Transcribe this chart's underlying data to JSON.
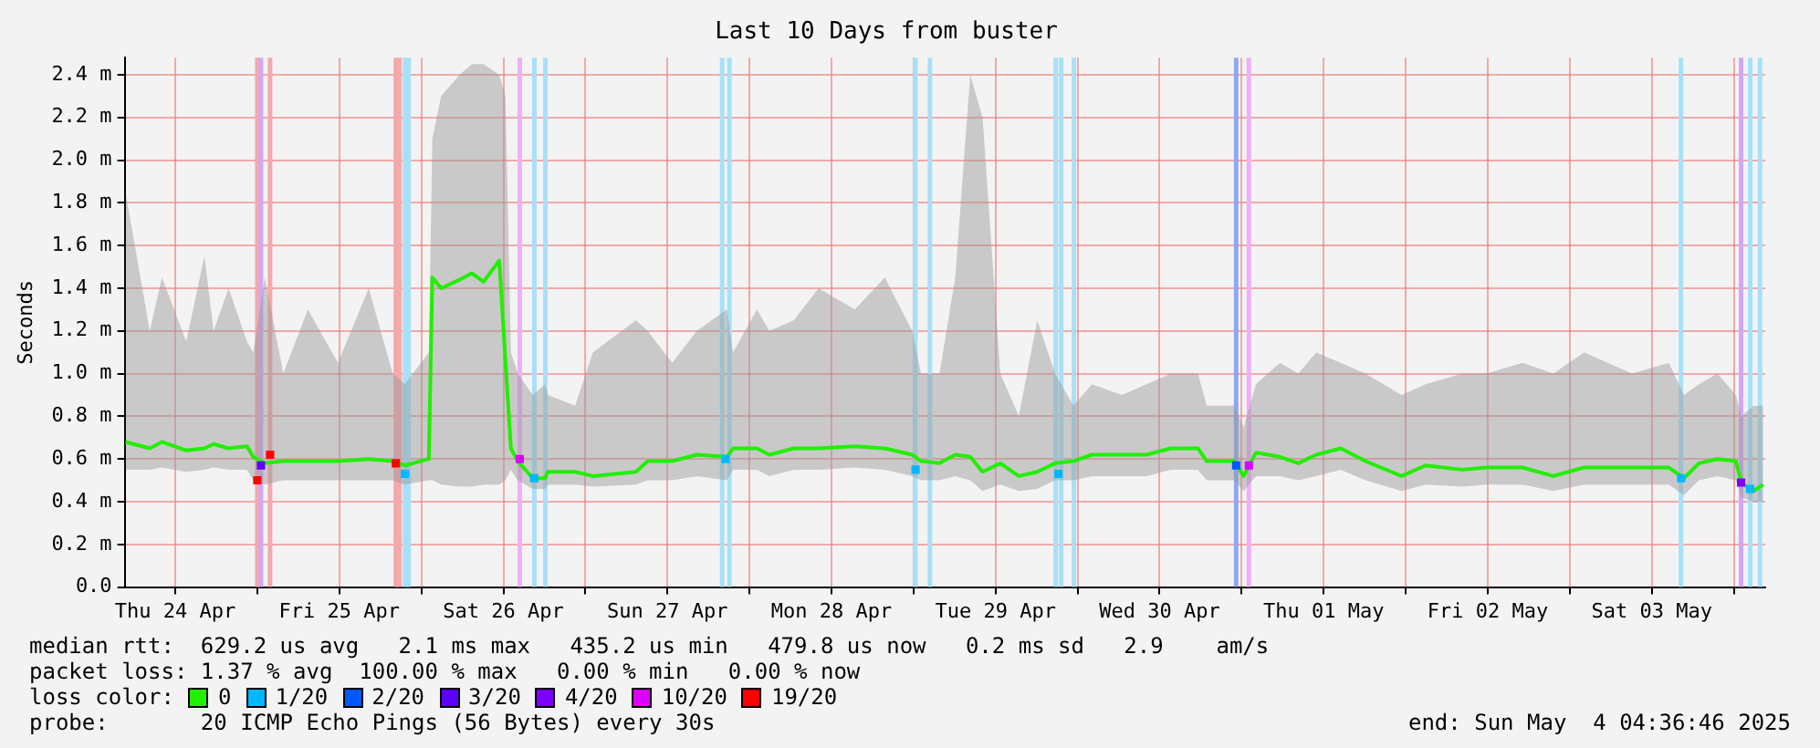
{
  "chart_data": {
    "type": "line",
    "title": "Last 10 Days from buster",
    "ylabel": "Seconds",
    "legend_title": "loss color:",
    "legend": "bottom",
    "grid": true,
    "marker": "none",
    "line_style": "solid",
    "xlim": [
      "2025-04-24T04:36",
      "2025-05-04T04:36"
    ],
    "xticks": [
      {
        "value": "2025-04-24T12:00",
        "label": "Thu 24 Apr"
      },
      {
        "value": "2025-04-25T00:00",
        "label": null
      },
      {
        "value": "2025-04-25T12:00",
        "label": "Fri 25 Apr"
      },
      {
        "value": "2025-04-26T00:00",
        "label": null
      },
      {
        "value": "2025-04-26T12:00",
        "label": "Sat 26 Apr"
      },
      {
        "value": "2025-04-27T00:00",
        "label": null
      },
      {
        "value": "2025-04-27T12:00",
        "label": "Sun 27 Apr"
      },
      {
        "value": "2025-04-28T00:00",
        "label": null
      },
      {
        "value": "2025-04-28T12:00",
        "label": "Mon 28 Apr"
      },
      {
        "value": "2025-04-29T00:00",
        "label": null
      },
      {
        "value": "2025-04-29T12:00",
        "label": "Tue 29 Apr"
      },
      {
        "value": "2025-04-30T00:00",
        "label": null
      },
      {
        "value": "2025-04-30T12:00",
        "label": "Wed 30 Apr"
      },
      {
        "value": "2025-05-01T00:00",
        "label": null
      },
      {
        "value": "2025-05-01T12:00",
        "label": "Thu 01 May"
      },
      {
        "value": "2025-05-02T00:00",
        "label": null
      },
      {
        "value": "2025-05-02T12:00",
        "label": "Fri 02 May"
      },
      {
        "value": "2025-05-03T00:00",
        "label": null
      },
      {
        "value": "2025-05-03T12:00",
        "label": "Sat 03 May"
      },
      {
        "value": "2025-05-04T00:00",
        "label": null
      }
    ],
    "ylim": [
      0,
      2.48
    ],
    "yticks": [
      {
        "value": 0,
        "label": "0.0"
      },
      {
        "value": 0.2,
        "label": "0.2 m"
      },
      {
        "value": 0.4,
        "label": "0.4 m"
      },
      {
        "value": 0.6,
        "label": "0.6 m"
      },
      {
        "value": 0.8,
        "label": "0.8 m"
      },
      {
        "value": 1.0,
        "label": "1.0 m"
      },
      {
        "value": 1.2,
        "label": "1.2 m"
      },
      {
        "value": 1.4,
        "label": "1.4 m"
      },
      {
        "value": 1.6,
        "label": "1.6 m"
      },
      {
        "value": 1.8,
        "label": "1.8 m"
      },
      {
        "value": 2.0,
        "label": "2.0 m"
      },
      {
        "value": 2.2,
        "label": "2.2 m"
      },
      {
        "value": 2.4,
        "label": "2.4 m"
      }
    ],
    "series": [
      {
        "name": "0",
        "color": "#22ee00",
        "x": [
          "2025-04-24T04:43",
          "2025-04-24T08:16",
          "2025-04-24T10:03",
          "2025-04-24T13:36",
          "2025-04-24T16:16",
          "2025-04-24T17:36",
          "2025-04-24T19:48",
          "2025-04-24T22:30",
          "2025-04-24T23:24",
          "2025-04-25T01:06",
          "2025-04-25T03:48",
          "2025-04-25T07:24",
          "2025-04-25T11:48",
          "2025-04-25T16:18",
          "2025-04-25T19:48",
          "2025-04-25T21:36",
          "2025-04-26T01:06",
          "2025-04-26T01:36",
          "2025-04-26T02:54",
          "2025-04-26T05:36",
          "2025-04-26T07:24",
          "2025-04-26T09:06",
          "2025-04-26T11:24",
          "2025-04-26T12:18",
          "2025-04-26T13:06",
          "2025-04-26T14:06",
          "2025-04-26T16:18",
          "2025-04-26T18:06",
          "2025-04-26T18:30",
          "2025-04-26T22:30",
          "2025-04-27T01:06",
          "2025-04-27T07:24",
          "2025-04-27T09:06",
          "2025-04-27T12:42",
          "2025-04-27T16:18",
          "2025-04-27T20:42",
          "2025-04-27T21:36",
          "2025-04-28T01:06",
          "2025-04-28T02:54",
          "2025-04-28T06:30",
          "2025-04-28T10:06",
          "2025-04-28T15:24",
          "2025-04-28T19:48",
          "2025-04-28T23:48",
          "2025-04-29T01:06",
          "2025-04-29T03:48",
          "2025-04-29T06:06",
          "2025-04-29T08:18",
          "2025-04-29T10:06",
          "2025-04-29T12:42",
          "2025-04-29T15:24",
          "2025-04-29T18:06",
          "2025-04-29T20:42",
          "2025-04-29T23:24",
          "2025-04-30T02:06",
          "2025-04-30T06:30",
          "2025-04-30T10:06",
          "2025-04-30T13:36",
          "2025-04-30T17:36",
          "2025-04-30T18:54",
          "2025-04-30T22:54",
          "2025-05-01T00:18",
          "2025-05-01T02:06",
          "2025-05-01T05:36",
          "2025-05-01T08:18",
          "2025-05-01T10:54",
          "2025-05-01T14:30",
          "2025-05-01T18:06",
          "2025-05-01T23:24",
          "2025-05-02T02:54",
          "2025-05-02T08:18",
          "2025-05-02T11:48",
          "2025-05-02T17:06",
          "2025-05-02T21:36",
          "2025-05-03T02:06",
          "2025-05-03T09:06",
          "2025-05-03T14:30",
          "2025-05-03T16:42",
          "2025-05-03T18:54",
          "2025-05-03T21:36",
          "2025-05-04T00:18",
          "2025-05-04T01:06",
          "2025-05-04T02:54",
          "2025-05-04T04:18"
        ],
        "values": [
          0.68,
          0.65,
          0.68,
          0.64,
          0.65,
          0.67,
          0.65,
          0.66,
          0.61,
          0.58,
          0.59,
          0.59,
          0.59,
          0.6,
          0.59,
          0.57,
          0.6,
          1.45,
          1.4,
          1.44,
          1.47,
          1.43,
          1.53,
          1.06,
          0.65,
          0.59,
          0.51,
          0.51,
          0.54,
          0.54,
          0.52,
          0.54,
          0.59,
          0.59,
          0.62,
          0.61,
          0.65,
          0.65,
          0.62,
          0.65,
          0.65,
          0.66,
          0.65,
          0.62,
          0.59,
          0.58,
          0.62,
          0.61,
          0.54,
          0.58,
          0.52,
          0.54,
          0.58,
          0.59,
          0.62,
          0.62,
          0.62,
          0.65,
          0.65,
          0.59,
          0.59,
          0.52,
          0.63,
          0.61,
          0.58,
          0.62,
          0.65,
          0.59,
          0.52,
          0.57,
          0.55,
          0.56,
          0.56,
          0.52,
          0.56,
          0.56,
          0.56,
          0.51,
          0.58,
          0.6,
          0.59,
          0.49,
          0.45,
          0.48
        ],
        "lower": [
          0.55,
          0.55,
          0.56,
          0.54,
          0.55,
          0.56,
          0.55,
          0.55,
          0.5,
          0.48,
          0.5,
          0.5,
          0.5,
          0.5,
          0.5,
          0.48,
          0.5,
          0.5,
          0.48,
          0.47,
          0.47,
          0.48,
          0.48,
          0.5,
          0.55,
          0.5,
          0.46,
          0.46,
          0.48,
          0.48,
          0.47,
          0.48,
          0.5,
          0.5,
          0.52,
          0.5,
          0.55,
          0.55,
          0.52,
          0.55,
          0.55,
          0.56,
          0.55,
          0.52,
          0.5,
          0.5,
          0.52,
          0.5,
          0.45,
          0.48,
          0.45,
          0.46,
          0.5,
          0.5,
          0.52,
          0.52,
          0.52,
          0.55,
          0.55,
          0.5,
          0.5,
          0.45,
          0.52,
          0.52,
          0.5,
          0.52,
          0.55,
          0.5,
          0.45,
          0.48,
          0.47,
          0.48,
          0.48,
          0.45,
          0.48,
          0.48,
          0.48,
          0.43,
          0.5,
          0.52,
          0.5,
          0.42,
          0.4,
          0.4
        ],
        "upper": [
          1.85,
          1.2,
          1.45,
          1.15,
          1.55,
          1.2,
          1.4,
          1.15,
          1.1,
          1.45,
          1.0,
          1.3,
          1.05,
          1.4,
          1.0,
          0.95,
          1.1,
          2.1,
          2.3,
          2.4,
          2.45,
          2.45,
          2.4,
          2.3,
          1.1,
          1.0,
          0.9,
          0.95,
          0.9,
          0.85,
          1.1,
          1.25,
          1.2,
          1.05,
          1.2,
          1.3,
          1.1,
          1.3,
          1.2,
          1.25,
          1.4,
          1.3,
          1.45,
          1.2,
          1.0,
          1.0,
          1.45,
          2.4,
          2.2,
          1.0,
          0.8,
          1.25,
          1.0,
          0.85,
          0.95,
          0.9,
          0.95,
          1.0,
          1.0,
          0.85,
          0.85,
          0.75,
          0.95,
          1.05,
          1.0,
          1.1,
          1.05,
          1.0,
          0.9,
          0.95,
          1.0,
          1.0,
          1.05,
          1.0,
          1.1,
          1.0,
          1.05,
          0.9,
          0.95,
          1.0,
          0.9,
          0.8,
          0.85,
          0.85
        ]
      },
      {
        "name": "1/20",
        "type": "scatter",
        "marker": "square",
        "color": "#00b8ff",
        "x": [
          "2025-04-25T21:36",
          "2025-04-26T16:30",
          "2025-04-27T20:30",
          "2025-04-29T00:18",
          "2025-04-29T21:12",
          "2025-05-03T16:18",
          "2025-05-04T02:24"
        ],
        "values": [
          0.53,
          0.51,
          0.6,
          0.55,
          0.53,
          0.51,
          0.46
        ]
      },
      {
        "name": "2/20",
        "type": "scatter",
        "marker": "square",
        "color": "#0059ff",
        "x": [
          "2025-04-30T23:12"
        ],
        "values": [
          0.57
        ]
      },
      {
        "name": "3/20",
        "type": "scatter",
        "marker": "square",
        "color": "#5e00ff",
        "x": [
          "2025-04-25T00:32"
        ],
        "values": [
          0.57
        ]
      },
      {
        "name": "4/20",
        "type": "scatter",
        "marker": "square",
        "color": "#7e00ff",
        "x": [
          "2025-05-04T01:04"
        ],
        "values": [
          0.49
        ]
      },
      {
        "name": "10/20",
        "type": "scatter",
        "marker": "square",
        "color": "#dd00ff",
        "x": [
          "2025-04-26T14:24",
          "2025-05-01T01:04"
        ],
        "values": [
          0.6,
          0.57
        ]
      },
      {
        "name": "19/20",
        "type": "scatter",
        "marker": "square",
        "color": "#ff0000",
        "x": [
          "2025-04-25T00:00",
          "2025-04-25T01:52",
          "2025-04-25T20:16"
        ],
        "values": [
          0.5,
          0.62,
          0.58
        ]
      }
    ],
    "ref_lines": [
      {
        "axis": "x",
        "value": "2025-04-25T00:00",
        "color": "#f7a8a8"
      },
      {
        "axis": "x",
        "value": "2025-04-25T00:32",
        "color": "#cfa8f7"
      },
      {
        "axis": "x",
        "value": "2025-04-25T01:52",
        "color": "#f7a8a8"
      },
      {
        "axis": "x",
        "value": "2025-04-25T20:16",
        "color": "#f7a8a8"
      },
      {
        "axis": "x",
        "value": "2025-04-25T20:48",
        "color": "#f7a8a8"
      },
      {
        "axis": "x",
        "value": "2025-04-25T21:36",
        "color": "#a8e0f7"
      },
      {
        "axis": "x",
        "value": "2025-04-25T22:08",
        "color": "#a8e0f7"
      },
      {
        "axis": "x",
        "value": "2025-04-26T14:24",
        "color": "#eeb0f7"
      },
      {
        "axis": "x",
        "value": "2025-04-26T16:32",
        "color": "#a8e0f7"
      },
      {
        "axis": "x",
        "value": "2025-04-26T18:08",
        "color": "#a8e0f7"
      },
      {
        "axis": "x",
        "value": "2025-04-27T20:00",
        "color": "#a8e0f7"
      },
      {
        "axis": "x",
        "value": "2025-04-27T21:04",
        "color": "#a8e0f7"
      },
      {
        "axis": "x",
        "value": "2025-04-29T00:16",
        "color": "#a8e0f7"
      },
      {
        "axis": "x",
        "value": "2025-04-29T02:24",
        "color": "#a8e0f7"
      },
      {
        "axis": "x",
        "value": "2025-04-29T20:48",
        "color": "#a8e0f7"
      },
      {
        "axis": "x",
        "value": "2025-04-29T21:36",
        "color": "#a8e0f7"
      },
      {
        "axis": "x",
        "value": "2025-04-29T23:28",
        "color": "#a8e0f7"
      },
      {
        "axis": "x",
        "value": "2025-04-30T23:12",
        "color": "#8fa8f0"
      },
      {
        "axis": "x",
        "value": "2025-05-01T01:04",
        "color": "#eeb0f7"
      },
      {
        "axis": "x",
        "value": "2025-05-03T16:16",
        "color": "#a8e0f7"
      },
      {
        "axis": "x",
        "value": "2025-05-04T01:04",
        "color": "#cfa8f7"
      },
      {
        "axis": "x",
        "value": "2025-05-04T02:24",
        "color": "#a8e0f7"
      },
      {
        "axis": "x",
        "value": "2025-05-04T03:50",
        "color": "#a8e0f7"
      }
    ],
    "annotations": [
      "median rtt:  629.2 us avg   2.1 ms max   435.2 us min   479.8 us now   0.2 ms sd   2.9    am/s",
      "packet loss: 1.37 % avg  100.00 % max   0.00 % min   0.00 % now",
      "probe:       20 ICMP Echo Pings (56 Bytes) every 30s",
      "end: Sun May  4 04:36:46 2025"
    ]
  }
}
